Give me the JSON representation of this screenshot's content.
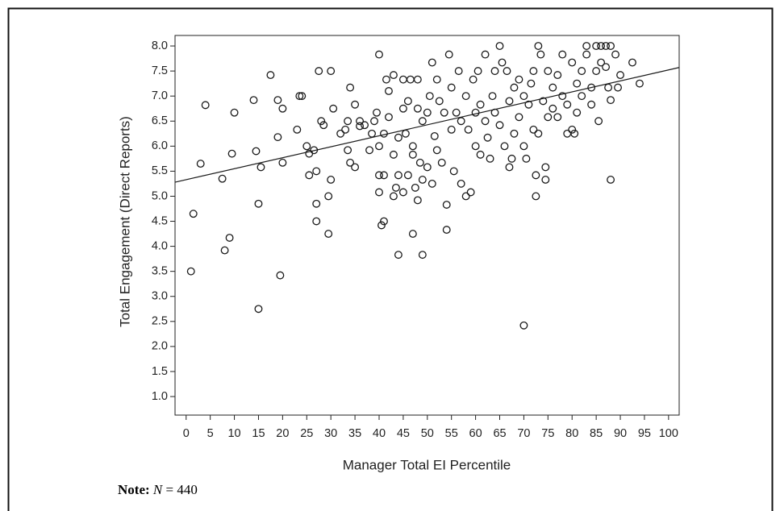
{
  "chart_data": {
    "type": "scatter",
    "x_label": "Manager Total EI Percentile",
    "y_label": "Total Engagement (Direct Reports)",
    "xlim": [
      -2.3,
      102.2
    ],
    "ylim": [
      0.63,
      8.21
    ],
    "xticks": [
      0,
      5,
      10,
      15,
      20,
      25,
      30,
      35,
      40,
      45,
      50,
      55,
      60,
      65,
      70,
      75,
      80,
      85,
      90,
      95,
      100
    ],
    "yticks": [
      {
        "value": 1,
        "label": "1.0"
      },
      {
        "value": 1.5,
        "label": "1.5"
      },
      {
        "value": 2,
        "label": "2.0"
      },
      {
        "value": 2.5,
        "label": "2.5"
      },
      {
        "value": 3,
        "label": "3.0"
      },
      {
        "value": 3.5,
        "label": "3.5"
      },
      {
        "value": 4,
        "label": "4.0"
      },
      {
        "value": 4.5,
        "label": "4.5"
      },
      {
        "value": 5,
        "label": "5.0"
      },
      {
        "value": 5.5,
        "label": "5.5"
      },
      {
        "value": 6,
        "label": "6.0"
      },
      {
        "value": 6.5,
        "label": "6.5"
      },
      {
        "value": 7,
        "label": "7.0"
      },
      {
        "value": 7.5,
        "label": "7.5"
      },
      {
        "value": 8,
        "label": "8.0"
      }
    ],
    "color": "#1a1a1a",
    "x": [
      1,
      1.5,
      3,
      4,
      7.5,
      8,
      9,
      9.5,
      10,
      14,
      14.5,
      15,
      15,
      15.5,
      17.5,
      19,
      19,
      19.5,
      20,
      20,
      23,
      23.5,
      24,
      25,
      25.5,
      25.5,
      26.5,
      27,
      27,
      27,
      27.5,
      28,
      28.5,
      30,
      29.5,
      29.5,
      30,
      30.5,
      32,
      33,
      33.5,
      33.5,
      34,
      34,
      35,
      35,
      36,
      36,
      37,
      38,
      38.5,
      39,
      39.5,
      40,
      40,
      40,
      40,
      40.5,
      41,
      41,
      41,
      41.5,
      42,
      42,
      43,
      43,
      43,
      43.5,
      44,
      44,
      44,
      45,
      45,
      45,
      45.5,
      46,
      46,
      46.5,
      47,
      47,
      47,
      47.5,
      48,
      48,
      48,
      48.5,
      49,
      49,
      49,
      50,
      50,
      50.5,
      51,
      51,
      51.5,
      52,
      52,
      52.5,
      53,
      53.5,
      54,
      54,
      54.5,
      55,
      55,
      55.5,
      56,
      56.5,
      57,
      57,
      58,
      58,
      58.5,
      59,
      59.5,
      60,
      60,
      60.5,
      61,
      61,
      62,
      62,
      62.5,
      63,
      63.5,
      64,
      64,
      65,
      65,
      65.5,
      66,
      66.5,
      67,
      67,
      67.5,
      68,
      68,
      69,
      69,
      70,
      70,
      70,
      70.5,
      71,
      71.5,
      72,
      72,
      72.5,
      72.5,
      73,
      73,
      73.5,
      74,
      74.5,
      74.5,
      75,
      75,
      76,
      76,
      77,
      77,
      78,
      78,
      79,
      79,
      80,
      80,
      80.5,
      81,
      81,
      82,
      82,
      83,
      83,
      84,
      84,
      85,
      85,
      85.5,
      86,
      86,
      87,
      87,
      87.5,
      88,
      88,
      88,
      89,
      89.5,
      90,
      92.5,
      94
    ],
    "values": [
      3.5,
      4.65,
      5.65,
      6.82,
      5.35,
      3.92,
      4.17,
      5.85,
      6.67,
      6.92,
      5.9,
      4.85,
      2.75,
      5.58,
      7.42,
      6.18,
      6.92,
      3.42,
      5.67,
      6.75,
      6.33,
      7,
      7,
      6,
      5.42,
      5.85,
      5.92,
      4.5,
      4.85,
      5.5,
      7.5,
      6.5,
      6.42,
      7.5,
      5,
      4.25,
      5.33,
      6.75,
      6.25,
      6.33,
      6.5,
      5.92,
      7.17,
      5.67,
      6.83,
      5.58,
      6.4,
      6.5,
      6.42,
      5.92,
      6.25,
      6.5,
      6.67,
      7.83,
      6,
      5.42,
      5.08,
      4.42,
      4.5,
      5.42,
      6.25,
      7.33,
      6.58,
      7.1,
      7.42,
      5.83,
      5,
      5.17,
      3.83,
      6.17,
      5.42,
      6.75,
      7.33,
      5.08,
      6.25,
      6.9,
      5.42,
      7.33,
      5.83,
      4.25,
      6,
      5.17,
      4.92,
      7.33,
      6.75,
      5.67,
      3.83,
      6.5,
      5.33,
      6.67,
      5.58,
      7,
      7.67,
      5.25,
      6.2,
      7.33,
      5.92,
      6.9,
      5.67,
      6.67,
      4.83,
      4.33,
      7.83,
      6.33,
      7.17,
      5.5,
      6.67,
      7.5,
      5.25,
      6.5,
      7,
      5,
      6.33,
      5.08,
      7.33,
      6,
      6.67,
      7.5,
      5.83,
      6.83,
      7.83,
      6.5,
      6.17,
      5.75,
      7,
      7.5,
      6.67,
      8,
      6.42,
      7.67,
      6,
      7.5,
      5.58,
      6.9,
      5.75,
      7.17,
      6.25,
      6.58,
      7.33,
      6,
      2.42,
      7,
      5.75,
      6.83,
      7.25,
      7.5,
      6.33,
      5.42,
      5,
      8,
      6.25,
      7.83,
      6.9,
      5.58,
      5.33,
      7.5,
      6.58,
      7.17,
      6.75,
      7.42,
      6.58,
      7.83,
      7,
      6.83,
      6.25,
      7.67,
      6.33,
      6.25,
      7.25,
      6.67,
      7.5,
      7,
      8,
      7.83,
      7.17,
      6.83,
      8,
      7.5,
      6.5,
      8,
      7.67,
      8,
      7.58,
      7.17,
      5.33,
      6.92,
      8,
      7.83,
      7.17,
      7.42,
      7.67,
      7.25
    ],
    "fit_line": {
      "x": [
        -2.3,
        102.2
      ],
      "values": [
        5.28,
        7.57
      ]
    },
    "note": {
      "label": "Note:",
      "variable": "N",
      "text": "= 440"
    }
  }
}
